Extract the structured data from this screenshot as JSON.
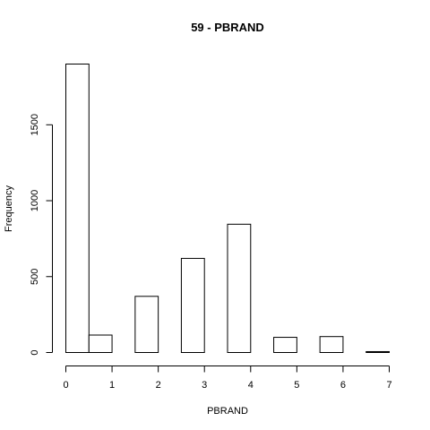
{
  "chart_data": {
    "type": "bar",
    "title": "59 - PBRAND",
    "xlabel": "PBRAND",
    "ylabel": "Frequency",
    "bins": [
      {
        "x0": 0.0,
        "x1": 0.5,
        "count": 1900
      },
      {
        "x0": 0.5,
        "x1": 1.0,
        "count": 115
      },
      {
        "x0": 1.0,
        "x1": 1.5,
        "count": 0
      },
      {
        "x0": 1.5,
        "x1": 2.0,
        "count": 370
      },
      {
        "x0": 2.0,
        "x1": 2.5,
        "count": 0
      },
      {
        "x0": 2.5,
        "x1": 3.0,
        "count": 620
      },
      {
        "x0": 3.0,
        "x1": 3.5,
        "count": 0
      },
      {
        "x0": 3.5,
        "x1": 4.0,
        "count": 845
      },
      {
        "x0": 4.0,
        "x1": 4.5,
        "count": 0
      },
      {
        "x0": 4.5,
        "x1": 5.0,
        "count": 100
      },
      {
        "x0": 5.0,
        "x1": 5.5,
        "count": 0
      },
      {
        "x0": 5.5,
        "x1": 6.0,
        "count": 105
      },
      {
        "x0": 6.0,
        "x1": 6.5,
        "count": 0
      },
      {
        "x0": 6.5,
        "x1": 7.0,
        "count": 6
      }
    ],
    "xlim": [
      0,
      7
    ],
    "ylim": [
      0,
      1900
    ],
    "x_ticks": [
      "0",
      "1",
      "2",
      "3",
      "4",
      "5",
      "6",
      "7"
    ],
    "y_ticks": [
      "0",
      "500",
      "1000",
      "1500"
    ],
    "grid": false,
    "legend": "none"
  }
}
